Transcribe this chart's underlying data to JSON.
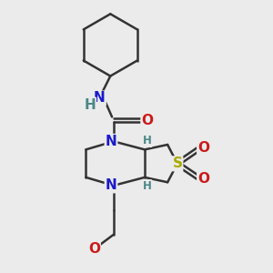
{
  "bg_color": "#ebebeb",
  "bond_color": "#333333",
  "bond_width": 1.8,
  "atom_colors": {
    "N": "#1a1acc",
    "O": "#cc1a1a",
    "S": "#aaaa00",
    "H": "#4a8888",
    "C": "#333333"
  },
  "font_size_atoms": 11,
  "font_size_small": 8.5,
  "font_size_O": 11
}
